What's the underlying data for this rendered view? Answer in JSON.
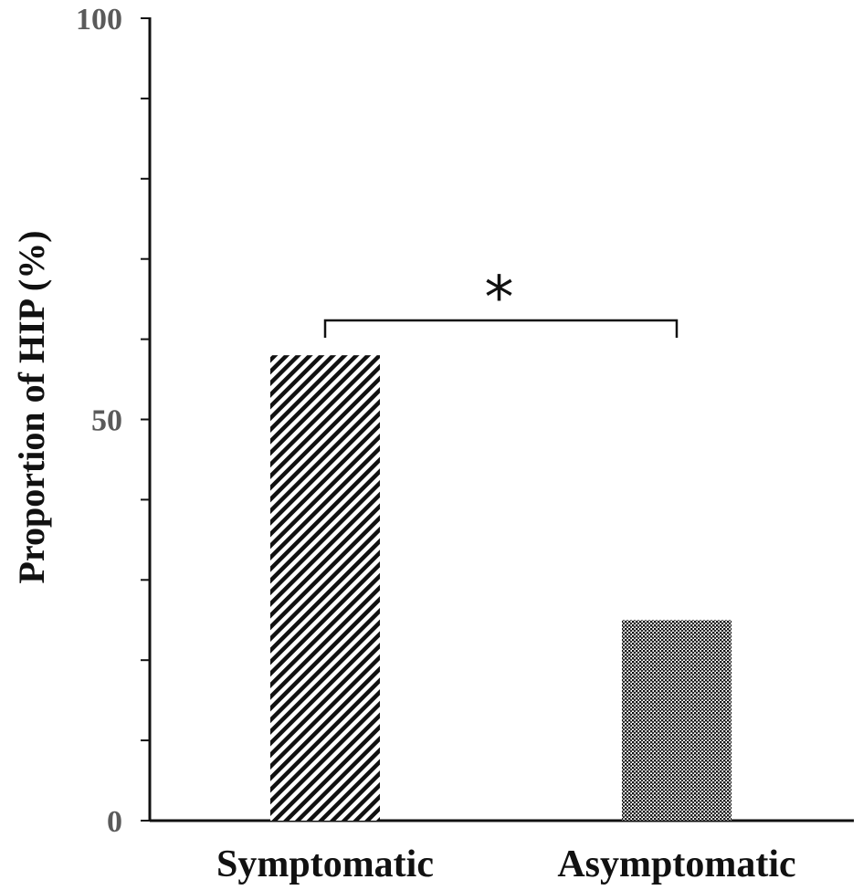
{
  "chart_data": {
    "type": "bar",
    "title": "",
    "xlabel": "",
    "ylabel": "Proportion of HIP (%)",
    "ylim": [
      0,
      100
    ],
    "yticks": [
      0,
      50,
      100
    ],
    "minor_tick_step": 10,
    "categories": [
      "Symptomatic",
      "Asymptomatic"
    ],
    "values": [
      58,
      25
    ],
    "bar_patterns": [
      "diagonal-hatch",
      "dotted"
    ],
    "significance": {
      "between": [
        "Symptomatic",
        "Asymptomatic"
      ],
      "marker": "*"
    },
    "grid": false,
    "legend": "none"
  }
}
